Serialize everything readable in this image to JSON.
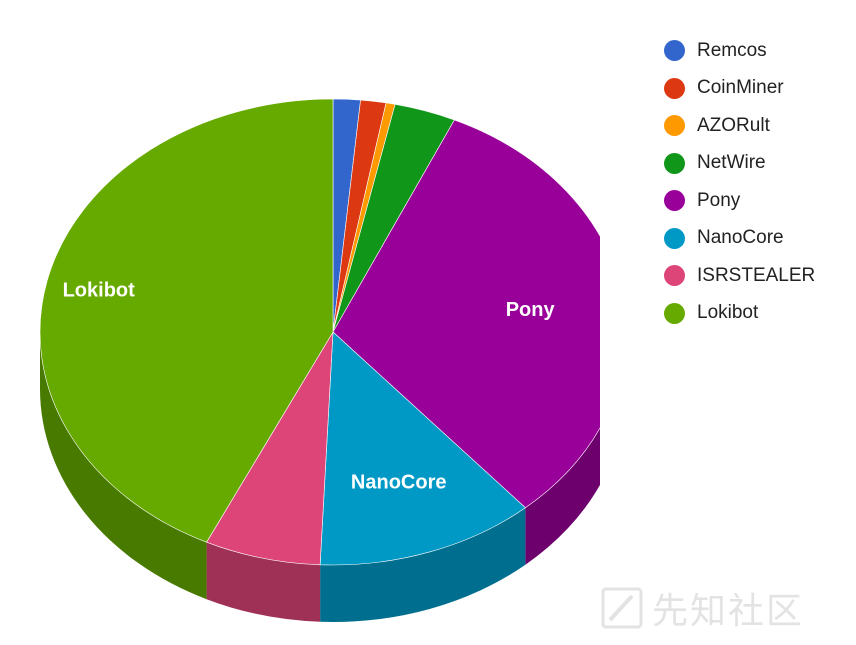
{
  "chart_data": {
    "type": "pie",
    "title": "",
    "slices": [
      {
        "label": "Remcos",
        "value": 1.5,
        "color": "#3366cc"
      },
      {
        "label": "CoinMiner",
        "value": 1.4,
        "color": "#dc3912"
      },
      {
        "label": "AZORult",
        "value": 0.5,
        "color": "#ff9900"
      },
      {
        "label": "NetWire",
        "value": 3.4,
        "color": "#109618"
      },
      {
        "label": "Pony",
        "value": 31.8,
        "color": "#990099"
      },
      {
        "label": "NanoCore",
        "value": 12.1,
        "color": "#0099c6"
      },
      {
        "label": "ISRSTEALER",
        "value": 6.4,
        "color": "#dd4477"
      },
      {
        "label": "Lokibot",
        "value": 42.9,
        "color": "#66aa00"
      }
    ],
    "labeled_slices": [
      "Pony",
      "NanoCore",
      "Lokibot"
    ],
    "legend_position": "right",
    "style": "3d"
  },
  "watermark": {
    "text": "先知社区",
    "icon": "slash-logo-icon"
  }
}
